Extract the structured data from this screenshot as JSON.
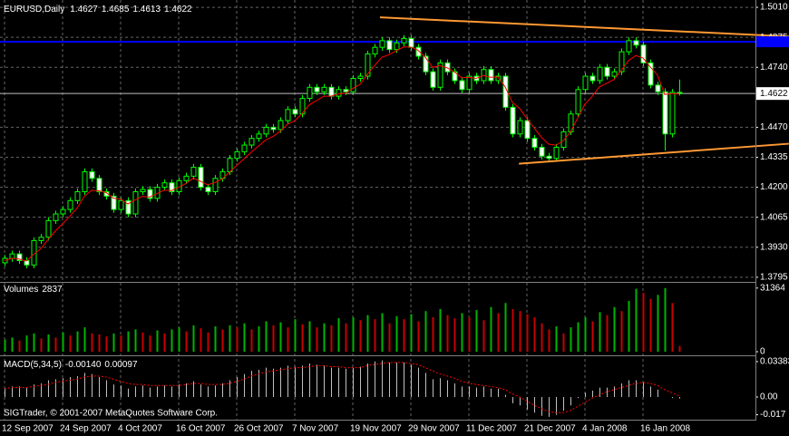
{
  "chart_data": [
    {
      "type": "candlestick",
      "title": "EURUSD,Daily",
      "categories": [
        "12 Sep 2007",
        null,
        null,
        null,
        null,
        null,
        null,
        null,
        "24 Sep 2007",
        null,
        null,
        null,
        null,
        null,
        null,
        null,
        "4 Oct 2007",
        null,
        null,
        null,
        null,
        null,
        null,
        null,
        "16 Oct 2007",
        null,
        null,
        null,
        null,
        null,
        null,
        null,
        "26 Oct 2007",
        null,
        null,
        null,
        null,
        null,
        null,
        null,
        "7 Nov 2007",
        null,
        null,
        null,
        null,
        null,
        null,
        null,
        "19 Nov 2007",
        null,
        null,
        null,
        null,
        null,
        null,
        null,
        "29 Nov 2007",
        null,
        null,
        null,
        null,
        null,
        null,
        null,
        "11 Dec 2007",
        null,
        null,
        null,
        null,
        null,
        null,
        null,
        "21 Dec 2007",
        null,
        null,
        null,
        null,
        null,
        null,
        null,
        "4 Jan 2008",
        null,
        null,
        null,
        null,
        null,
        null,
        null,
        "16 Jan 2008",
        null,
        null,
        null,
        null,
        null
      ],
      "open": [
        1.386,
        1.388,
        1.39,
        1.387,
        1.385,
        1.396,
        1.3975,
        1.405,
        1.408,
        1.41,
        1.414,
        1.418,
        1.427,
        1.424,
        1.418,
        1.416,
        1.41,
        1.414,
        1.408,
        1.418,
        1.419,
        1.415,
        1.42,
        1.422,
        1.418,
        1.423,
        1.425,
        1.429,
        1.42,
        1.418,
        1.424,
        1.427,
        1.433,
        1.436,
        1.439,
        1.442,
        1.444,
        1.447,
        1.446,
        1.45,
        1.455,
        1.453,
        1.46,
        1.465,
        1.463,
        1.465,
        1.461,
        1.464,
        1.463,
        1.469,
        1.47,
        1.48,
        1.483,
        1.486,
        1.482,
        1.485,
        1.487,
        1.483,
        1.479,
        1.472,
        1.465,
        1.476,
        1.472,
        1.468,
        1.464,
        1.47,
        1.468,
        1.473,
        1.468,
        1.47,
        1.456,
        1.444,
        1.45,
        1.442,
        1.438,
        1.434,
        1.433,
        1.438,
        1.445,
        1.453,
        1.464,
        1.47,
        1.468,
        1.474,
        1.47,
        1.472,
        1.481,
        1.486,
        1.484,
        1.476,
        1.466,
        1.463,
        1.444,
        1.4627
      ],
      "high": [
        1.3895,
        1.3915,
        1.3915,
        1.3885,
        1.3975,
        1.399,
        1.4065,
        1.4095,
        1.4115,
        1.4155,
        1.4195,
        1.4285,
        1.4285,
        1.4255,
        1.4195,
        1.4175,
        1.4155,
        1.4155,
        1.4195,
        1.4205,
        1.4205,
        1.4215,
        1.4235,
        1.4235,
        1.4245,
        1.4265,
        1.4305,
        1.4305,
        1.4215,
        1.4255,
        1.4285,
        1.4345,
        1.4375,
        1.4405,
        1.4435,
        1.4455,
        1.4485,
        1.4485,
        1.4515,
        1.4565,
        1.4565,
        1.4615,
        1.4665,
        1.4665,
        1.4665,
        1.4665,
        1.4655,
        1.4655,
        1.4705,
        1.4715,
        1.4815,
        1.4845,
        1.4875,
        1.4875,
        1.4865,
        1.4885,
        1.4885,
        1.4845,
        1.4805,
        1.4735,
        1.4775,
        1.4775,
        1.4735,
        1.4695,
        1.4715,
        1.4715,
        1.4745,
        1.4745,
        1.4715,
        1.4715,
        1.4575,
        1.4515,
        1.4515,
        1.4435,
        1.4395,
        1.4355,
        1.4395,
        1.4465,
        1.4545,
        1.4655,
        1.4715,
        1.4715,
        1.4755,
        1.4755,
        1.4735,
        1.4825,
        1.4875,
        1.4875,
        1.4855,
        1.4775,
        1.4675,
        1.4645,
        1.4642,
        1.4685
      ],
      "low": [
        1.3845,
        1.3865,
        1.3855,
        1.3835,
        1.3835,
        1.3945,
        1.396,
        1.4035,
        1.4065,
        1.4085,
        1.4125,
        1.4165,
        1.4225,
        1.4165,
        1.4145,
        1.4085,
        1.4085,
        1.4065,
        1.4065,
        1.4165,
        1.4135,
        1.4135,
        1.4185,
        1.4165,
        1.4165,
        1.4215,
        1.4235,
        1.4185,
        1.4165,
        1.4165,
        1.4225,
        1.4255,
        1.4315,
        1.4345,
        1.4375,
        1.4405,
        1.4425,
        1.4445,
        1.4445,
        1.4485,
        1.4515,
        1.4515,
        1.4585,
        1.4615,
        1.4615,
        1.4595,
        1.4595,
        1.4615,
        1.4615,
        1.4675,
        1.4685,
        1.4785,
        1.4815,
        1.4805,
        1.4805,
        1.4835,
        1.4815,
        1.4775,
        1.4705,
        1.4635,
        1.4635,
        1.4705,
        1.4665,
        1.4625,
        1.4625,
        1.4665,
        1.4665,
        1.4665,
        1.4665,
        1.4545,
        1.4425,
        1.4425,
        1.4405,
        1.4365,
        1.4325,
        1.4315,
        1.4315,
        1.4365,
        1.4435,
        1.4515,
        1.4625,
        1.4665,
        1.4665,
        1.4685,
        1.4685,
        1.4705,
        1.4795,
        1.4825,
        1.4745,
        1.4645,
        1.4615,
        1.4365,
        1.4425,
        1.4613
      ],
      "close": [
        1.388,
        1.39,
        1.387,
        1.385,
        1.396,
        1.3975,
        1.405,
        1.408,
        1.41,
        1.414,
        1.418,
        1.427,
        1.424,
        1.418,
        1.416,
        1.41,
        1.414,
        1.408,
        1.418,
        1.419,
        1.415,
        1.42,
        1.422,
        1.418,
        1.423,
        1.425,
        1.429,
        1.42,
        1.418,
        1.424,
        1.427,
        1.433,
        1.436,
        1.439,
        1.442,
        1.444,
        1.447,
        1.446,
        1.45,
        1.455,
        1.453,
        1.46,
        1.465,
        1.463,
        1.465,
        1.461,
        1.464,
        1.463,
        1.469,
        1.47,
        1.48,
        1.483,
        1.486,
        1.482,
        1.485,
        1.487,
        1.483,
        1.479,
        1.472,
        1.465,
        1.476,
        1.472,
        1.468,
        1.464,
        1.47,
        1.468,
        1.473,
        1.468,
        1.47,
        1.456,
        1.444,
        1.45,
        1.442,
        1.438,
        1.434,
        1.433,
        1.438,
        1.445,
        1.453,
        1.464,
        1.47,
        1.468,
        1.474,
        1.47,
        1.472,
        1.481,
        1.486,
        1.484,
        1.476,
        1.466,
        1.463,
        1.444,
        1.4627,
        1.4622
      ],
      "candle_color": "#00ff00",
      "bull_fill": "#000000",
      "bear_fill": "#ffffff",
      "ma": {
        "color": "#ff0000",
        "values": [
          1.387,
          1.388,
          1.3877,
          1.3868,
          1.3898,
          1.3923,
          1.3965,
          1.4003,
          1.4035,
          1.407,
          1.4106,
          1.416,
          1.4186,
          1.4184,
          1.4176,
          1.4151,
          1.4147,
          1.4125,
          1.4143,
          1.4159,
          1.4156,
          1.4171,
          1.4187,
          1.4185,
          1.42,
          1.4217,
          1.4241,
          1.4227,
          1.4211,
          1.4221,
          1.4237,
          1.4268,
          1.4298,
          1.4328,
          1.4358,
          1.4385,
          1.4413,
          1.4429,
          1.4452,
          1.4484,
          1.4499,
          1.4532,
          1.4571,
          1.459,
          1.461,
          1.461,
          1.462,
          1.4623,
          1.4645,
          1.4663,
          1.4708,
          1.4748,
          1.4785,
          1.4797,
          1.4814,
          1.4832,
          1.4831,
          1.4817,
          1.4785,
          1.474,
          1.4747,
          1.4738,
          1.4719,
          1.4693,
          1.4695,
          1.469,
          1.4703,
          1.4695,
          1.4697,
          1.4652,
          1.4582,
          1.4555,
          1.451,
          1.4467,
          1.4425,
          1.4394,
          1.4389,
          1.4409,
          1.4449,
          1.4512,
          1.4574,
          1.4609,
          1.4652,
          1.4668,
          1.4685,
          1.4726,
          1.477,
          1.4793,
          1.4782,
          1.4742,
          1.4705,
          1.4618,
          1.4621,
          1.4621
        ]
      },
      "trendlines": [
        {
          "color": "#ff9933",
          "x": [
            51.75,
            108.1
          ],
          "y": [
            1.4965,
            1.4879
          ]
        },
        {
          "color": "#ff9933",
          "x": [
            70.9,
            108.1
          ],
          "y": [
            1.4306,
            1.4396
          ]
        }
      ],
      "hline": {
        "value": 1.4855,
        "color": "#0000ff"
      },
      "ylim": [
        1.3774,
        1.5043
      ],
      "yticks": [
        {
          "value": 1.501,
          "label": "1.5010"
        },
        1.4875,
        {
          "value": 1.474,
          "label": "1.4740"
        },
        {
          "value": 1.447,
          "label": "1.4470"
        },
        1.4335,
        {
          "value": 1.42,
          "label": "1.4200"
        },
        1.4065,
        {
          "value": 1.393,
          "label": "1.3930"
        },
        1.3795
      ],
      "grid": true
    },
    {
      "type": "bar",
      "title": "Volumes",
      "values": [
        6000,
        7000,
        5500,
        8000,
        9000,
        6500,
        8500,
        7000,
        9500,
        8000,
        10000,
        12000,
        9000,
        8500,
        7500,
        9000,
        8000,
        10000,
        11000,
        9500,
        8000,
        10500,
        9000,
        11000,
        12000,
        10000,
        13000,
        11500,
        9500,
        12500,
        11000,
        13000,
        12000,
        14000,
        11000,
        12500,
        15000,
        13000,
        14500,
        12000,
        16000,
        13500,
        15000,
        12000,
        14000,
        13000,
        16500,
        14000,
        17000,
        15500,
        18000,
        16000,
        19000,
        14000,
        17500,
        16000,
        18500,
        15000,
        20000,
        17000,
        21000,
        18000,
        16500,
        19000,
        17000,
        20500,
        15500,
        22000,
        19000,
        24000,
        21000,
        20000,
        18500,
        17000,
        14000,
        11000,
        12500,
        9000,
        12000,
        14500,
        17000,
        15000,
        19500,
        18000,
        22000,
        20000,
        25000,
        31000,
        29000,
        26000,
        28000,
        31364,
        24000,
        2837
      ],
      "up_color": "#00b400",
      "down_color": "#c80000",
      "ylim": [
        0,
        33500
      ],
      "yticks": [
        0,
        31364
      ]
    },
    {
      "type": "macd",
      "title": "MACD(5,34,5)",
      "readout": [
        {
          "value": -0.0014,
          "label": "-0.00140"
        },
        {
          "value": 0.00097,
          "label": "0.00097"
        }
      ],
      "histogram": {
        "color": "#c0c0c0",
        "values": [
          0.008,
          0.01,
          0.01,
          0.009,
          0.012,
          0.013,
          0.016,
          0.017,
          0.018,
          0.019,
          0.02,
          0.023,
          0.022,
          0.019,
          0.016,
          0.012,
          0.011,
          0.008,
          0.01,
          0.011,
          0.009,
          0.01,
          0.011,
          0.01,
          0.012,
          0.013,
          0.015,
          0.012,
          0.01,
          0.011,
          0.013,
          0.016,
          0.019,
          0.022,
          0.025,
          0.026,
          0.028,
          0.027,
          0.028,
          0.03,
          0.029,
          0.03,
          0.032,
          0.031,
          0.03,
          0.028,
          0.028,
          0.027,
          0.028,
          0.029,
          0.032,
          0.034,
          0.035,
          0.033,
          0.033,
          0.033,
          0.031,
          0.028,
          0.023,
          0.017,
          0.018,
          0.016,
          0.013,
          0.01,
          0.01,
          0.009,
          0.01,
          0.008,
          0.008,
          0.002,
          -0.006,
          -0.008,
          -0.012,
          -0.015,
          -0.018,
          -0.019,
          -0.017,
          -0.013,
          -0.008,
          -0.001,
          0.004,
          0.006,
          0.009,
          0.009,
          0.01,
          0.013,
          0.016,
          0.016,
          0.014,
          0.01,
          0.007,
          0.0,
          -0.001,
          -0.0014
        ]
      },
      "signal": {
        "color": "#ff0000",
        "values": [
          0.008,
          0.009,
          0.009,
          0.009,
          0.01,
          0.011,
          0.012,
          0.014,
          0.015,
          0.016,
          0.017,
          0.019,
          0.02,
          0.02,
          0.019,
          0.017,
          0.015,
          0.013,
          0.012,
          0.012,
          0.011,
          0.011,
          0.011,
          0.011,
          0.011,
          0.012,
          0.013,
          0.013,
          0.012,
          0.012,
          0.012,
          0.013,
          0.015,
          0.017,
          0.02,
          0.022,
          0.024,
          0.025,
          0.026,
          0.027,
          0.028,
          0.028,
          0.029,
          0.03,
          0.03,
          0.029,
          0.029,
          0.028,
          0.028,
          0.028,
          0.03,
          0.031,
          0.032,
          0.033,
          0.033,
          0.033,
          0.032,
          0.031,
          0.028,
          0.025,
          0.022,
          0.02,
          0.018,
          0.015,
          0.013,
          0.012,
          0.011,
          0.01,
          0.009,
          0.007,
          0.003,
          0.0,
          -0.004,
          -0.008,
          -0.011,
          -0.014,
          -0.015,
          -0.015,
          -0.013,
          -0.009,
          -0.005,
          -0.001,
          0.002,
          0.005,
          0.007,
          0.009,
          0.011,
          0.013,
          0.014,
          0.013,
          0.011,
          0.007,
          0.004,
          0.00097
        ]
      },
      "footer": "SIGTrader, © 2001-2007 MetaQuotes Software Corp.",
      "ylim": [
        -0.0217,
        0.0381
      ],
      "yticks": [
        0.03383,
        {
          "value": 0,
          "label": "0.00"
        },
        -0.017
      ]
    }
  ]
}
